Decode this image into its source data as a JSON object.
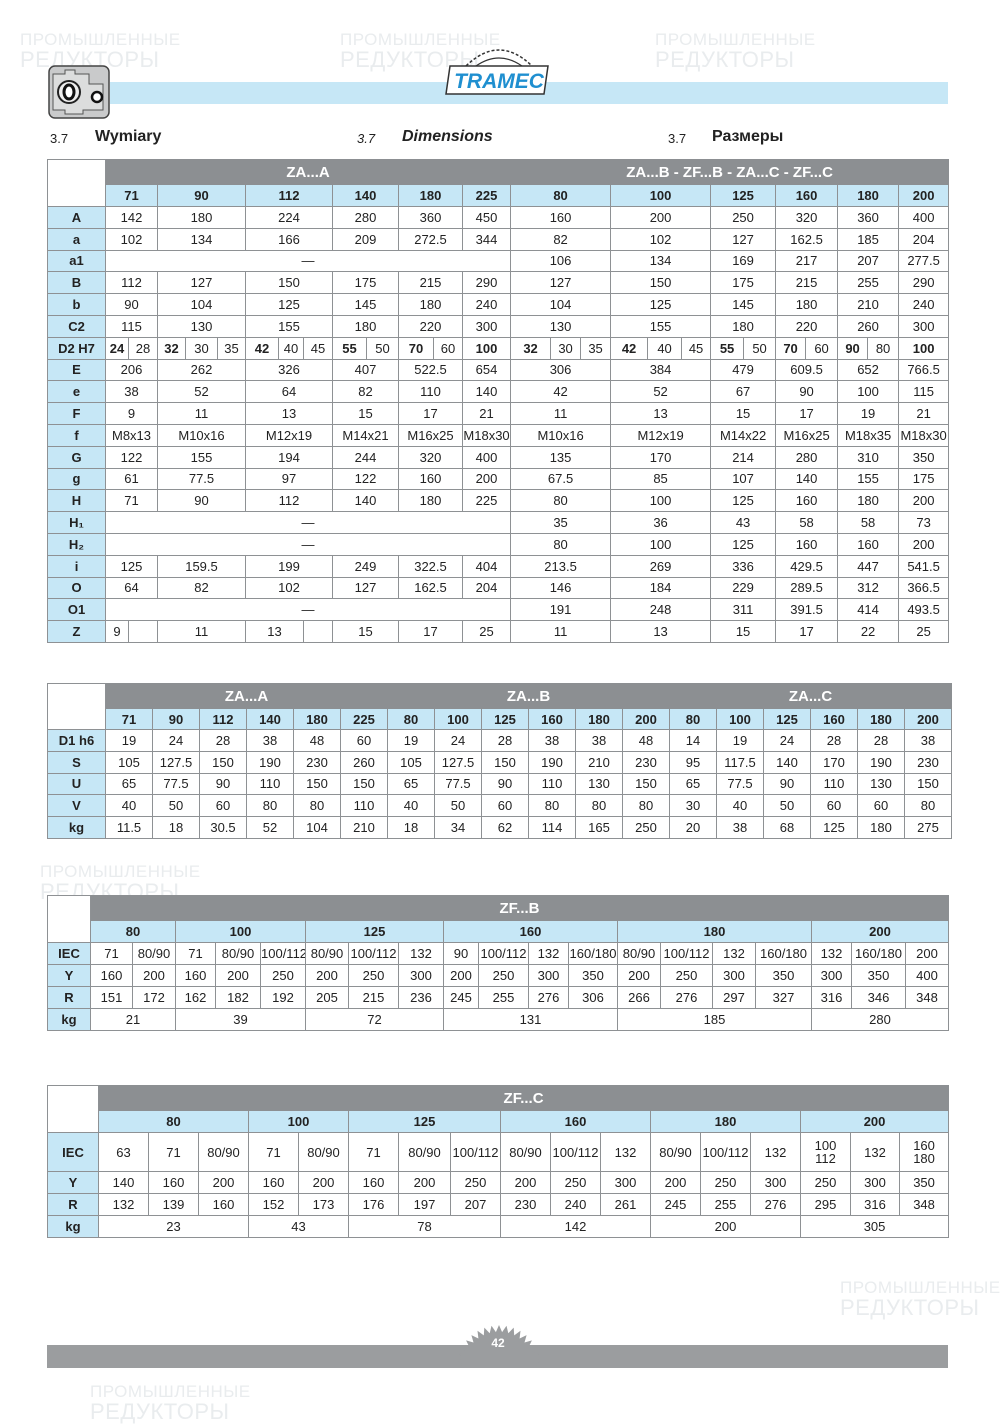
{
  "watermark": {
    "line1": "ПРОМЫШЛЕННЫЕ",
    "line2": "РЕДУКТОРЫ"
  },
  "header": {
    "logo_text": "TRAMEC",
    "sections": [
      {
        "number": "3.7",
        "title": "Wymiary"
      },
      {
        "number": "3.7",
        "title": "Dimensions"
      },
      {
        "number": "3.7",
        "title": "Размеры"
      }
    ]
  },
  "colors": {
    "group_header": "#8c8f92",
    "size_header": "#c6e7f6",
    "accent_bar": "#c6e7f6",
    "footer_bar": "#9b9d9f"
  },
  "tables": [
    {
      "id": "t1",
      "groups": [
        "ZA...A",
        "ZA...B - ZF...B - ZA...C - ZF...C"
      ],
      "sizes": [
        "71",
        "90",
        "112",
        "140",
        "180",
        "225",
        "80",
        "100",
        "125",
        "160",
        "180",
        "200"
      ],
      "rows": [
        {
          "label": "A",
          "cells": [
            "142",
            "180",
            "224",
            "280",
            "360",
            "450",
            "160",
            "200",
            "250",
            "320",
            "360",
            "400"
          ]
        },
        {
          "label": "a",
          "cells": [
            "102",
            "134",
            "166",
            "209",
            "272.5",
            "344",
            "82",
            "102",
            "127",
            "162.5",
            "185",
            "204"
          ]
        },
        {
          "label": "a1",
          "cells": [
            {
              "v": "—",
              "span": 13
            },
            "106",
            "134",
            "169",
            "217",
            "207",
            "277.5"
          ]
        },
        {
          "label": "B",
          "cells": [
            "112",
            "127",
            "150",
            "175",
            "215",
            "290",
            "127",
            "150",
            "175",
            "215",
            "255",
            "290"
          ]
        },
        {
          "label": "b",
          "cells": [
            "90",
            "104",
            "125",
            "145",
            "180",
            "240",
            "104",
            "125",
            "145",
            "180",
            "210",
            "240"
          ]
        },
        {
          "label": "C2",
          "cells": [
            "115",
            "130",
            "155",
            "180",
            "220",
            "300",
            "130",
            "155",
            "180",
            "220",
            "260",
            "300"
          ]
        },
        {
          "label": "D2 H7",
          "cells": [
            {
              "v": "24",
              "b": true
            },
            "28",
            {
              "v": "32",
              "b": true
            },
            "30",
            "35",
            {
              "v": "42",
              "b": true
            },
            "40",
            "45",
            {
              "v": "55",
              "b": true
            },
            "50",
            {
              "v": "70",
              "b": true
            },
            "60",
            {
              "v": "100",
              "b": true
            },
            {
              "v": "32",
              "b": true
            },
            "30",
            "35",
            {
              "v": "42",
              "b": true
            },
            "40",
            "45",
            {
              "v": "55",
              "b": true
            },
            "50",
            {
              "v": "70",
              "b": true
            },
            "60",
            {
              "v": "90",
              "b": true
            },
            "80",
            {
              "v": "100",
              "b": true
            }
          ]
        },
        {
          "label": "E",
          "cells": [
            "206",
            "262",
            "326",
            "407",
            "522.5",
            "654",
            "306",
            "384",
            "479",
            "609.5",
            "652",
            "766.5"
          ]
        },
        {
          "label": "e",
          "cells": [
            "38",
            "52",
            "64",
            "82",
            "110",
            "140",
            "42",
            "52",
            "67",
            "90",
            "100",
            "115"
          ]
        },
        {
          "label": "F",
          "cells": [
            "9",
            "11",
            "13",
            "15",
            "17",
            "21",
            "11",
            "13",
            "15",
            "17",
            "19",
            "21"
          ]
        },
        {
          "label": "f",
          "cells": [
            "M8x13",
            "M10x16",
            "M12x19",
            "M14x21",
            "M16x25",
            "M18x30",
            "M10x16",
            "M12x19",
            "M14x22",
            "M16x25",
            "M18x35",
            "M18x30"
          ]
        },
        {
          "label": "G",
          "cells": [
            "122",
            "155",
            "194",
            "244",
            "320",
            "400",
            "135",
            "170",
            "214",
            "280",
            "310",
            "350"
          ]
        },
        {
          "label": "g",
          "cells": [
            "61",
            "77.5",
            "97",
            "122",
            "160",
            "200",
            "67.5",
            "85",
            "107",
            "140",
            "155",
            "175"
          ]
        },
        {
          "label": "H",
          "cells": [
            "71",
            "90",
            "112",
            "140",
            "180",
            "225",
            "80",
            "100",
            "125",
            "160",
            "180",
            "200"
          ]
        },
        {
          "label": "H₁",
          "cells": [
            {
              "v": "—",
              "span": 13
            },
            "35",
            "36",
            "43",
            "58",
            "58",
            "73"
          ]
        },
        {
          "label": "H₂",
          "cells": [
            {
              "v": "—",
              "span": 13
            },
            "80",
            "100",
            "125",
            "160",
            "160",
            "200"
          ]
        },
        {
          "label": "i",
          "cells": [
            "125",
            "159.5",
            "199",
            "249",
            "322.5",
            "404",
            "213.5",
            "269",
            "336",
            "429.5",
            "447",
            "541.5"
          ]
        },
        {
          "label": "O",
          "cells": [
            "64",
            "82",
            "102",
            "127",
            "162.5",
            "204",
            "146",
            "184",
            "229",
            "289.5",
            "312",
            "366.5"
          ]
        },
        {
          "label": "O1",
          "cells": [
            {
              "v": "—",
              "span": 13
            },
            "191",
            "248",
            "311",
            "391.5",
            "414",
            "493.5"
          ]
        },
        {
          "label": "Z",
          "cells": [
            {
              "v": "9",
              "span": 1
            },
            {
              "v": "",
              "span": 1
            },
            "11",
            {
              "v": "13",
              "span": 2
            },
            {
              "v": "",
              "span": 1
            },
            "15",
            "17",
            "25",
            "11",
            "13",
            "15",
            "17",
            "22",
            "25"
          ]
        }
      ]
    },
    {
      "id": "t2",
      "groups": [
        "ZA...A",
        "ZA...B",
        "ZA...C"
      ],
      "sizes": [
        "71",
        "90",
        "112",
        "140",
        "180",
        "225",
        "80",
        "100",
        "125",
        "160",
        "180",
        "200",
        "80",
        "100",
        "125",
        "160",
        "180",
        "200"
      ],
      "rows": [
        {
          "label": "D1 h6",
          "cells": [
            "19",
            "24",
            "28",
            "38",
            "48",
            "60",
            "19",
            "24",
            "28",
            "38",
            "38",
            "48",
            "14",
            "19",
            "24",
            "28",
            "28",
            "38"
          ]
        },
        {
          "label": "S",
          "cells": [
            "105",
            "127.5",
            "150",
            "190",
            "230",
            "260",
            "105",
            "127.5",
            "150",
            "190",
            "210",
            "230",
            "95",
            "117.5",
            "140",
            "170",
            "190",
            "230"
          ]
        },
        {
          "label": "U",
          "cells": [
            "65",
            "77.5",
            "90",
            "110",
            "150",
            "150",
            "65",
            "77.5",
            "90",
            "110",
            "130",
            "150",
            "65",
            "77.5",
            "90",
            "110",
            "130",
            "150"
          ]
        },
        {
          "label": "V",
          "cells": [
            "40",
            "50",
            "60",
            "80",
            "80",
            "110",
            "40",
            "50",
            "60",
            "80",
            "80",
            "80",
            "30",
            "40",
            "50",
            "60",
            "60",
            "80"
          ]
        },
        {
          "label": "kg",
          "cells": [
            "11.5",
            "18",
            "30.5",
            "52",
            "104",
            "210",
            "18",
            "34",
            "62",
            "114",
            "165",
            "250",
            "20",
            "38",
            "68",
            "125",
            "180",
            "275"
          ]
        }
      ]
    },
    {
      "id": "t3",
      "groups": [
        "ZF...B"
      ],
      "sizes": [
        "80",
        "100",
        "125",
        "160",
        "180",
        "200"
      ],
      "rows": [
        {
          "label": "IEC",
          "cells": [
            "71",
            "80/90",
            "71",
            "80/90",
            "100/112",
            "80/90",
            "100/112",
            "132",
            "90",
            "100/112",
            "132",
            "160/180",
            "80/90",
            "100/112",
            "132",
            "160/180",
            "132",
            "160/180",
            "200"
          ]
        },
        {
          "label": "Y",
          "cells": [
            "160",
            "200",
            "160",
            "200",
            "250",
            "200",
            "250",
            "300",
            "200",
            "250",
            "300",
            "350",
            "200",
            "250",
            "300",
            "350",
            "300",
            "350",
            "400"
          ]
        },
        {
          "label": "R",
          "cells": [
            "151",
            "172",
            "162",
            "182",
            "192",
            "205",
            "215",
            "236",
            "245",
            "255",
            "276",
            "306",
            "266",
            "276",
            "297",
            "327",
            "316",
            "346",
            "348"
          ]
        },
        {
          "label": "kg",
          "cells": [
            "21",
            "39",
            "72",
            "131",
            "185",
            "280"
          ]
        }
      ]
    },
    {
      "id": "t4",
      "groups": [
        "ZF...C"
      ],
      "sizes": [
        "80",
        "100",
        "125",
        "160",
        "180",
        "200"
      ],
      "rows": [
        {
          "label": "IEC",
          "cells": [
            "63",
            "71",
            "80/90",
            "71",
            "80/90",
            "71",
            "80/90",
            "100/112",
            "80/90",
            "100/112",
            "132",
            "80/90",
            "100/112",
            "132",
            "100\n112",
            "132",
            "160\n180"
          ]
        },
        {
          "label": "Y",
          "cells": [
            "140",
            "160",
            "200",
            "160",
            "200",
            "160",
            "200",
            "250",
            "200",
            "250",
            "300",
            "200",
            "250",
            "300",
            "250",
            "300",
            "350"
          ]
        },
        {
          "label": "R",
          "cells": [
            "132",
            "139",
            "160",
            "152",
            "173",
            "176",
            "197",
            "207",
            "230",
            "240",
            "261",
            "245",
            "255",
            "276",
            "295",
            "316",
            "348"
          ]
        },
        {
          "label": "kg",
          "cells": [
            "23",
            "43",
            "78",
            "142",
            "200",
            "305"
          ]
        }
      ]
    }
  ],
  "footer": {
    "page_number": "42"
  }
}
